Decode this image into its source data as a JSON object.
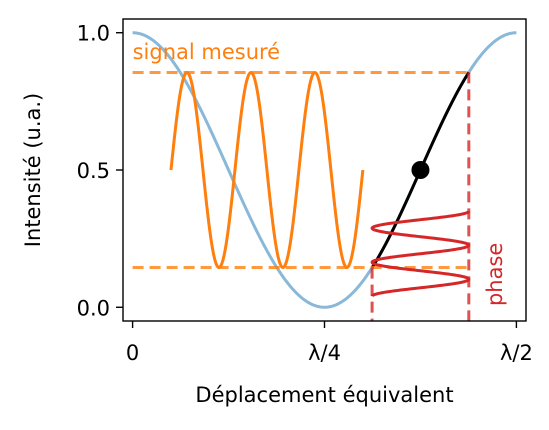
{
  "chart_data": {
    "type": "line",
    "title": "",
    "xlabel": "Déplacement équivalent",
    "ylabel": "Intensité (u.a.)",
    "xlim": [
      -0.0125,
      0.5125
    ],
    "ylim": [
      -0.05,
      1.05
    ],
    "x_ticks": [
      {
        "value": 0,
        "label": "0"
      },
      {
        "value": 0.25,
        "label": "λ/4"
      },
      {
        "value": 0.5,
        "label": "λ/2"
      }
    ],
    "y_ticks": [
      {
        "value": 0.0,
        "label": "0.0"
      },
      {
        "value": 0.5,
        "label": "0.5"
      },
      {
        "value": 1.0,
        "label": "1.0"
      }
    ],
    "grid": false,
    "intensity_curve": {
      "formula": "(1 + cos(4*pi*x)) / 2",
      "x_range": [
        0,
        0.5
      ],
      "color": "#8ab8d8",
      "highlight": {
        "x_range": [
          0.312,
          0.438
        ],
        "color": "#000000"
      }
    },
    "operating_point": {
      "x": 0.375,
      "y": 0.5
    },
    "signal": {
      "label": "signal mesuré",
      "color": "#ff7f0e",
      "dashed_levels": [
        0.855,
        0.145
      ],
      "dashed_x_range": [
        0,
        0.438
      ],
      "wave_x_range": [
        0.05,
        0.3
      ],
      "wave_cycles": 3
    },
    "phase": {
      "label": "phase",
      "color": "#d62728",
      "dashed_x": [
        0.312,
        0.438
      ],
      "wave_y_range": [
        0.04,
        0.35
      ],
      "wave_cycles": 2.5
    }
  }
}
